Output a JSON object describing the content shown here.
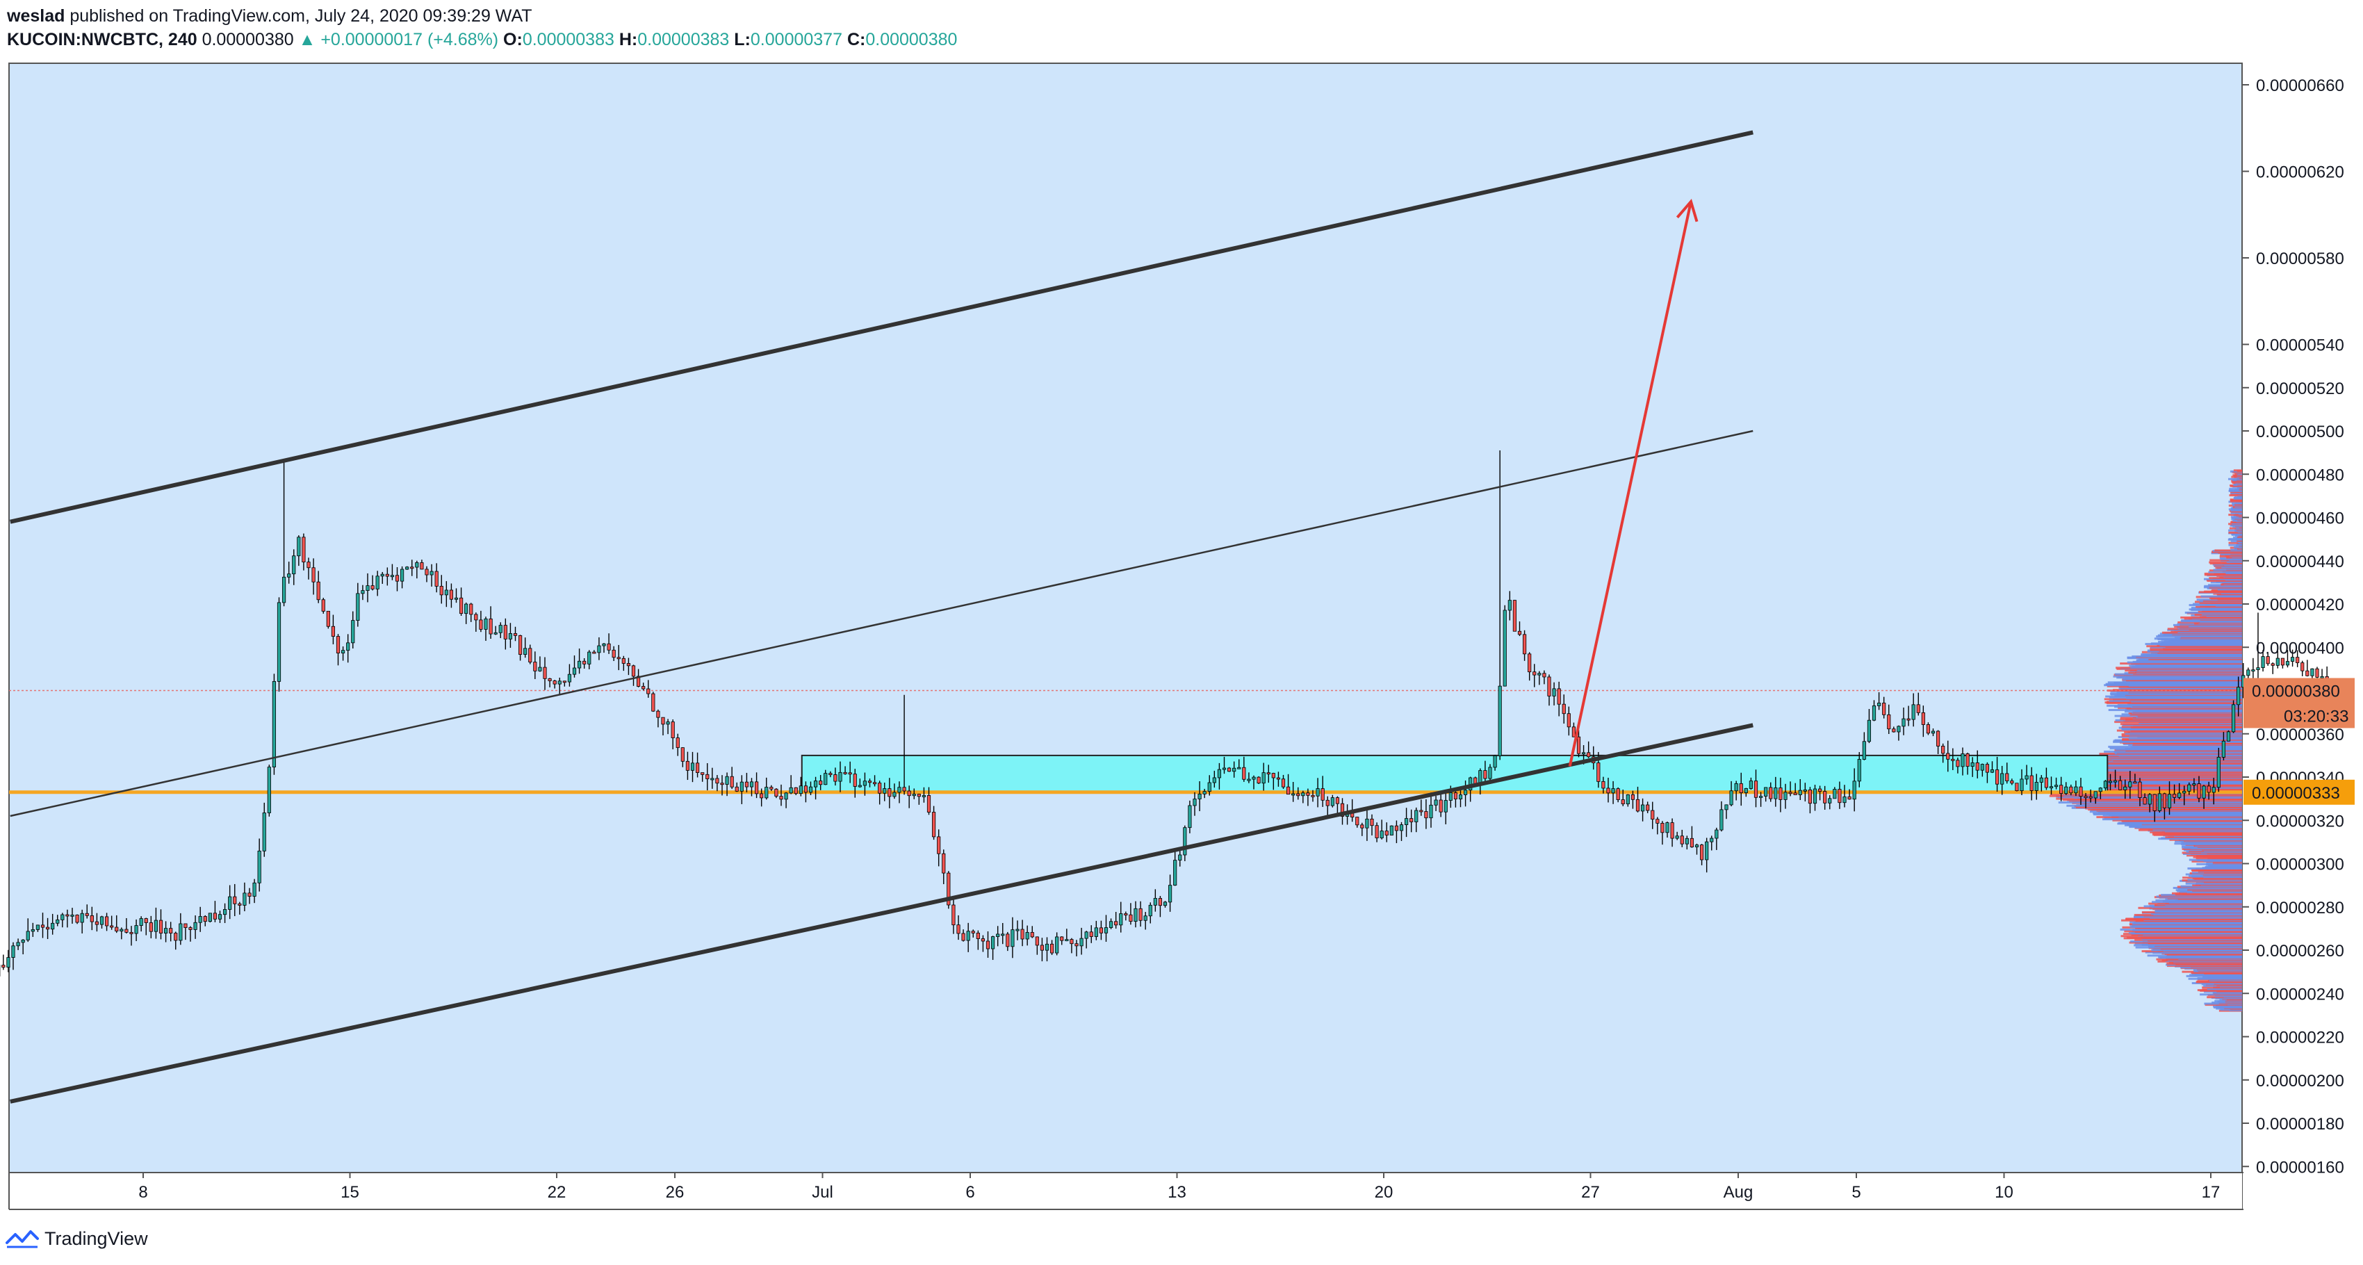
{
  "header": {
    "author": "weslad",
    "published": "published on TradingView.com, July 24, 2020 09:39:29 WAT",
    "symbol": "KUCOIN:NWCBTC, 240",
    "last": "0.00000380",
    "change": "▲ +0.00000017 (+4.68%)",
    "o_label": "O:",
    "o_value": "0.00000383",
    "h_label": "H:",
    "h_value": "0.00000383",
    "l_label": "L:",
    "l_value": "0.00000377",
    "c_label": "C:",
    "c_value": "0.00000380"
  },
  "footer": {
    "brand": "TradingView",
    "logo_icon": "tradingview-logo-icon"
  },
  "colors": {
    "background": "#cfe5fb",
    "up": "#26a69a",
    "down": "#ef5350",
    "wick": "#000000",
    "channel": "#333333",
    "support": "#f5a623",
    "zone": "#7df3f7",
    "arrow": "#e53935",
    "price_tag": "#e8845a",
    "support_tag": "#f59e0b",
    "volume_up": "#6a8fe8",
    "volume_down": "#ef5350"
  },
  "chart_data": {
    "type": "candlestick",
    "timeframe": "240",
    "yrange": [
      1.45e-06,
      6.7e-06
    ],
    "y_ticks": [
      "0.00000660",
      "0.00000620",
      "0.00000580",
      "0.00000540",
      "0.00000520",
      "0.00000500",
      "0.00000480",
      "0.00000460",
      "0.00000440",
      "0.00000420",
      "0.00000400",
      "0.00000360",
      "0.00000340",
      "0.00000320",
      "0.00000300",
      "0.00000280",
      "0.00000260",
      "0.00000240",
      "0.00000220",
      "0.00000200",
      "0.00000180",
      "0.00000160"
    ],
    "x_ticks": [
      {
        "label": "8",
        "day": 8
      },
      {
        "label": "15",
        "day": 15
      },
      {
        "label": "22",
        "day": 22
      },
      {
        "label": "26",
        "day": 26
      },
      {
        "label": "Jul",
        "day": 31
      },
      {
        "label": "6",
        "day": 36
      },
      {
        "label": "13",
        "day": 43
      },
      {
        "label": "20",
        "day": 50
      },
      {
        "label": "27",
        "day": 57
      },
      {
        "label": "Aug",
        "day": 62
      },
      {
        "label": "5",
        "day": 66
      },
      {
        "label": "10",
        "day": 71
      },
      {
        "label": "17",
        "day": 78
      }
    ],
    "current_price": {
      "value": 3.8e-06,
      "label": "0.00000380",
      "countdown": "03:20:33"
    },
    "support_level": {
      "value": 3.33e-06,
      "label": "0.00000333"
    },
    "zone": {
      "start_day": 30.3,
      "end_day": 74.5,
      "top": 3.5e-06,
      "bottom": 3.33e-06
    },
    "channel_upper": {
      "start": {
        "day": 3.5,
        "price": 4.58e-06
      },
      "end": {
        "day": 62.5,
        "price": 6.38e-06
      }
    },
    "channel_mid": {
      "start": {
        "day": 3.5,
        "price": 3.22e-06
      },
      "end": {
        "day": 62.5,
        "price": 5e-06
      }
    },
    "channel_lower": {
      "start": {
        "day": 3.5,
        "price": 1.9e-06
      },
      "end": {
        "day": 62.5,
        "price": 3.64e-06
      }
    },
    "arrow": {
      "start": {
        "day": 56.3,
        "price": 3.45e-06
      },
      "end": {
        "day": 60.4,
        "price": 6.06e-06
      }
    },
    "close_path": [
      [
        1,
        2.3e-06
      ],
      [
        2,
        2.5e-06
      ],
      [
        3,
        2.68e-06
      ],
      [
        4,
        2.76e-06
      ],
      [
        5,
        2.73e-06
      ],
      [
        6,
        2.7e-06
      ],
      [
        7,
        2.71e-06
      ],
      [
        8,
        2.68e-06
      ],
      [
        9,
        2.76e-06
      ],
      [
        10,
        2.83e-06
      ],
      [
        10.5,
        2.9e-06
      ],
      [
        11,
        3.35e-06
      ],
      [
        11.4,
        4.25e-06
      ],
      [
        12,
        4.48e-06
      ],
      [
        12.5,
        4.32e-06
      ],
      [
        13,
        4.12e-06
      ],
      [
        13.5,
        3.95e-06
      ],
      [
        14,
        4.25e-06
      ],
      [
        15,
        4.32e-06
      ],
      [
        16,
        4.38e-06
      ],
      [
        17,
        4.25e-06
      ],
      [
        18,
        4.12e-06
      ],
      [
        19,
        4.05e-06
      ],
      [
        20,
        3.92e-06
      ],
      [
        21,
        3.82e-06
      ],
      [
        22,
        4.02e-06
      ],
      [
        23,
        3.9e-06
      ],
      [
        24,
        3.72e-06
      ],
      [
        25,
        3.45e-06
      ],
      [
        26,
        3.38e-06
      ],
      [
        27,
        3.36e-06
      ],
      [
        28,
        3.32e-06
      ],
      [
        29,
        3.35e-06
      ],
      [
        30,
        3.42e-06
      ],
      [
        31,
        3.36e-06
      ],
      [
        32,
        3.34e-06
      ],
      [
        33,
        3.28e-06
      ],
      [
        34,
        2.68e-06
      ],
      [
        35,
        2.62e-06
      ],
      [
        36,
        2.66e-06
      ],
      [
        37,
        2.62e-06
      ],
      [
        38,
        2.65e-06
      ],
      [
        39,
        2.7e-06
      ],
      [
        40,
        2.76e-06
      ],
      [
        41,
        2.85e-06
      ],
      [
        42,
        3.32e-06
      ],
      [
        43,
        3.45e-06
      ],
      [
        44,
        3.4e-06
      ],
      [
        45,
        3.36e-06
      ],
      [
        46,
        3.33e-06
      ],
      [
        47,
        3.25e-06
      ],
      [
        48,
        3.15e-06
      ],
      [
        49,
        3.2e-06
      ],
      [
        50,
        3.25e-06
      ],
      [
        51,
        3.35e-06
      ],
      [
        52,
        3.45e-06
      ],
      [
        52.4,
        4.25e-06
      ],
      [
        53,
        3.95e-06
      ],
      [
        54,
        3.78e-06
      ],
      [
        55,
        3.48e-06
      ],
      [
        56,
        3.32e-06
      ],
      [
        57,
        3.26e-06
      ],
      [
        58,
        3.12e-06
      ],
      [
        59,
        3.05e-06
      ],
      [
        60,
        3.35e-06
      ],
      [
        61,
        3.34e-06
      ],
      [
        62,
        3.32e-06
      ],
      [
        63,
        3.3e-06
      ],
      [
        64,
        3.33e-06
      ],
      [
        64.8,
        3.78e-06
      ],
      [
        65.3,
        3.58e-06
      ],
      [
        66,
        3.7e-06
      ],
      [
        67,
        3.52e-06
      ],
      [
        68,
        3.45e-06
      ],
      [
        69,
        3.38e-06
      ],
      [
        70,
        3.37e-06
      ],
      [
        71,
        3.35e-06
      ],
      [
        72,
        3.33e-06
      ],
      [
        73,
        3.38e-06
      ],
      [
        74,
        3.28e-06
      ],
      [
        75,
        3.32e-06
      ],
      [
        76,
        3.35e-06
      ],
      [
        77,
        3.85e-06
      ],
      [
        78,
        3.95e-06
      ],
      [
        79,
        3.9e-06
      ],
      [
        80,
        3.8e-06
      ]
    ],
    "spikes": [
      {
        "bar": 11.6,
        "high": 4.87e-06
      },
      {
        "bar": 52.2,
        "high": 4.91e-06
      },
      {
        "bar": 53.8,
        "high": 3.86e-06
      },
      {
        "bar": 32.2,
        "high": 3.78e-06
      },
      {
        "bar": 77.6,
        "high": 4.16e-06
      }
    ],
    "volume_profile": "horizontal volume-by-price histogram on right side, peak near 0.00000380 and 0.00000333"
  }
}
